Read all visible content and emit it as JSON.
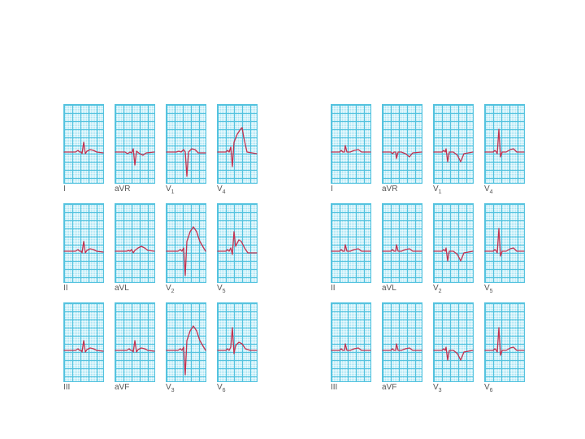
{
  "colors": {
    "grid_bg": "#a9e4f3",
    "grid_line": "#55c3df",
    "trace": "#c4314f"
  },
  "panels": [
    {
      "name": "left",
      "leads": [
        {
          "label": "I",
          "sub": "",
          "shape": "small-up"
        },
        {
          "label": "aVR",
          "sub": "",
          "shape": "small-neg"
        },
        {
          "label": "V",
          "sub": "1",
          "shape": "deep-s"
        },
        {
          "label": "V",
          "sub": "4",
          "shape": "big-st"
        },
        {
          "label": "II",
          "sub": "",
          "shape": "small-up"
        },
        {
          "label": "aVL",
          "sub": "",
          "shape": "flat-t"
        },
        {
          "label": "V",
          "sub": "2",
          "shape": "deep-st"
        },
        {
          "label": "V",
          "sub": "5",
          "shape": "mid-st"
        },
        {
          "label": "III",
          "sub": "",
          "shape": "small-up"
        },
        {
          "label": "aVF",
          "sub": "",
          "shape": "small-up"
        },
        {
          "label": "V",
          "sub": "3",
          "shape": "deep-st"
        },
        {
          "label": "V",
          "sub": "6",
          "shape": "tall-r"
        }
      ]
    },
    {
      "name": "right",
      "leads": [
        {
          "label": "I",
          "sub": "",
          "shape": "n-pos"
        },
        {
          "label": "aVR",
          "sub": "",
          "shape": "n-neg"
        },
        {
          "label": "V",
          "sub": "1",
          "shape": "n-rs"
        },
        {
          "label": "V",
          "sub": "4",
          "shape": "n-tall"
        },
        {
          "label": "II",
          "sub": "",
          "shape": "n-pos"
        },
        {
          "label": "aVL",
          "sub": "",
          "shape": "n-pos"
        },
        {
          "label": "V",
          "sub": "2",
          "shape": "n-rs"
        },
        {
          "label": "V",
          "sub": "5",
          "shape": "n-tall"
        },
        {
          "label": "III",
          "sub": "",
          "shape": "n-pos"
        },
        {
          "label": "aVF",
          "sub": "",
          "shape": "n-pos"
        },
        {
          "label": "V",
          "sub": "3",
          "shape": "n-rs"
        },
        {
          "label": "V",
          "sub": "6",
          "shape": "n-tall"
        }
      ]
    }
  ]
}
